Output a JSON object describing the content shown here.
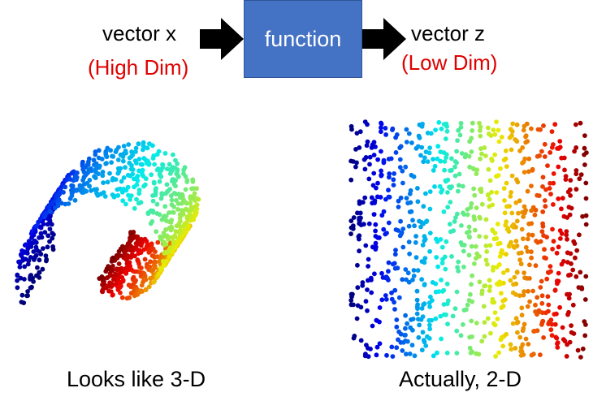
{
  "input": {
    "title": "vector x",
    "subtitle": "(High Dim)"
  },
  "function": {
    "label": "function"
  },
  "output": {
    "title": "vector z",
    "subtitle": "(Low Dim)"
  },
  "left_panel": {
    "caption": "Looks like 3-D"
  },
  "right_panel": {
    "caption": "Actually, 2-D"
  },
  "colors": {
    "box": "#4472c4",
    "highlight": "#e00000",
    "arrow": "#000000"
  },
  "icons": [
    "arrow-right-icon",
    "arrow-right-icon"
  ]
}
